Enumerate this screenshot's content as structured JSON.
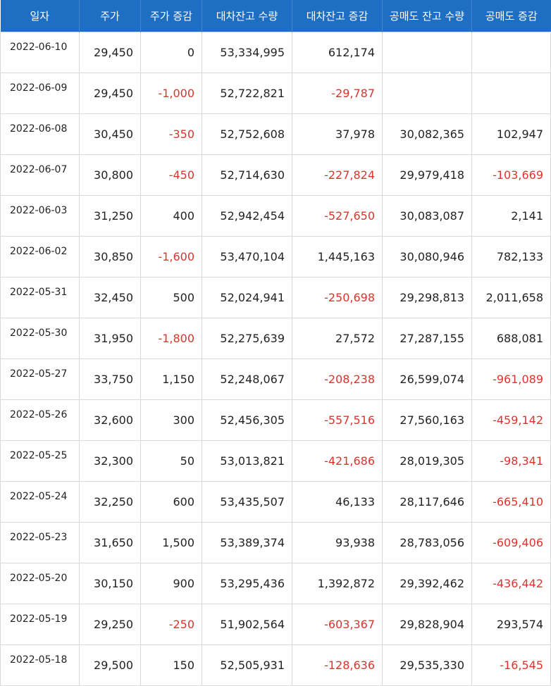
{
  "headers": [
    "일자",
    "주가",
    "주가 증감",
    "대차잔고 수량",
    "대차잔고 증감",
    "공매도 잔고 수량",
    "공매도 증감"
  ],
  "rows": [
    [
      "2022-06-10",
      "29,450",
      "0",
      "53,334,995",
      "612,174",
      "",
      ""
    ],
    [
      "2022-06-09",
      "29,450",
      "-1,000",
      "52,722,821",
      "-29,787",
      "",
      ""
    ],
    [
      "2022-06-08",
      "30,450",
      "-350",
      "52,752,608",
      "37,978",
      "30,082,365",
      "102,947"
    ],
    [
      "2022-06-07",
      "30,800",
      "-450",
      "52,714,630",
      "-227,824",
      "29,979,418",
      "-103,669"
    ],
    [
      "2022-06-03",
      "31,250",
      "400",
      "52,942,454",
      "-527,650",
      "30,083,087",
      "2,141"
    ],
    [
      "2022-06-02",
      "30,850",
      "-1,600",
      "53,470,104",
      "1,445,163",
      "30,080,946",
      "782,133"
    ],
    [
      "2022-05-31",
      "32,450",
      "500",
      "52,024,941",
      "-250,698",
      "29,298,813",
      "2,011,658"
    ],
    [
      "2022-05-30",
      "31,950",
      "-1,800",
      "52,275,639",
      "27,572",
      "27,287,155",
      "688,081"
    ],
    [
      "2022-05-27",
      "33,750",
      "1,150",
      "52,248,067",
      "-208,238",
      "26,599,074",
      "-961,089"
    ],
    [
      "2022-05-26",
      "32,600",
      "300",
      "52,456,305",
      "-557,516",
      "27,560,163",
      "-459,142"
    ],
    [
      "2022-05-25",
      "32,300",
      "50",
      "53,013,821",
      "-421,686",
      "28,019,305",
      "-98,341"
    ],
    [
      "2022-05-24",
      "32,250",
      "600",
      "53,435,507",
      "46,133",
      "28,117,646",
      "-665,410"
    ],
    [
      "2022-05-23",
      "31,650",
      "1,500",
      "53,389,374",
      "93,938",
      "28,783,056",
      "-609,406"
    ],
    [
      "2022-05-20",
      "30,150",
      "900",
      "53,295,436",
      "1,392,872",
      "29,392,462",
      "-436,442"
    ],
    [
      "2022-05-19",
      "29,250",
      "-250",
      "51,902,564",
      "-603,367",
      "29,828,904",
      "293,574"
    ],
    [
      "2022-05-18",
      "29,500",
      "150",
      "52,505,931",
      "-128,636",
      "29,535,330",
      "-16,545"
    ]
  ],
  "colors": {
    "header_bg": "#1e6fc3",
    "header_text": "#ffffff",
    "negative": "#e0322d",
    "text": "#222222"
  }
}
